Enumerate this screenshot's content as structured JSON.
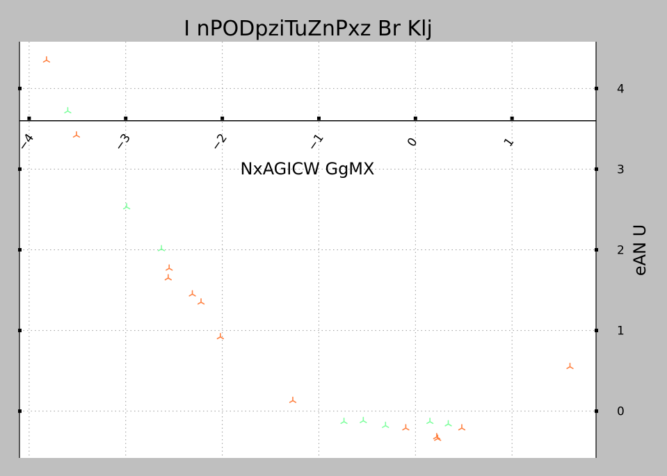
{
  "chart_data": {
    "type": "scatter",
    "title": "I nPODpziTuZnPxz  Br Klj",
    "xlabel": "NxAGICW GgMX",
    "ylabel": "eAN  U",
    "xlim": [
      -4.1,
      1.87
    ],
    "ylim": [
      -0.58,
      4.58
    ],
    "x_ticks": [
      -4,
      -3,
      -2,
      -1,
      0,
      1
    ],
    "x_tick_labels": [
      "−4",
      "−3",
      "−2",
      "−1",
      "0",
      "1"
    ],
    "y_ticks": [
      0,
      1,
      2,
      3,
      4
    ],
    "y_tick_labels": [
      "0",
      "1",
      "2",
      "3",
      "4"
    ],
    "x_axis_position_y": 3.6,
    "grid": true,
    "marker": "tri_up",
    "colors": {
      "orange": "#ff8040",
      "green": "#80ff9f",
      "frame_bg": "#bfbfbf",
      "plot_bg": "#ffffff"
    },
    "series": [
      {
        "color": "#ff8040",
        "points": [
          [
            -3.82,
            4.35
          ],
          [
            -3.51,
            3.42
          ],
          [
            -2.55,
            1.77
          ],
          [
            -2.56,
            1.65
          ],
          [
            -2.31,
            1.45
          ],
          [
            -2.22,
            1.35
          ],
          [
            -2.02,
            0.92
          ],
          [
            -1.27,
            0.13
          ],
          [
            -0.1,
            -0.21
          ],
          [
            0.22,
            -0.32
          ],
          [
            0.23,
            -0.34
          ],
          [
            0.48,
            -0.21
          ],
          [
            1.6,
            0.55
          ]
        ]
      },
      {
        "color": "#80ff9f",
        "points": [
          [
            -3.6,
            3.72
          ],
          [
            -2.99,
            2.53
          ],
          [
            -2.63,
            2.01
          ],
          [
            -0.74,
            -0.13
          ],
          [
            -0.54,
            -0.12
          ],
          [
            -0.31,
            -0.18
          ],
          [
            0.15,
            -0.13
          ],
          [
            0.34,
            -0.16
          ]
        ]
      }
    ]
  }
}
